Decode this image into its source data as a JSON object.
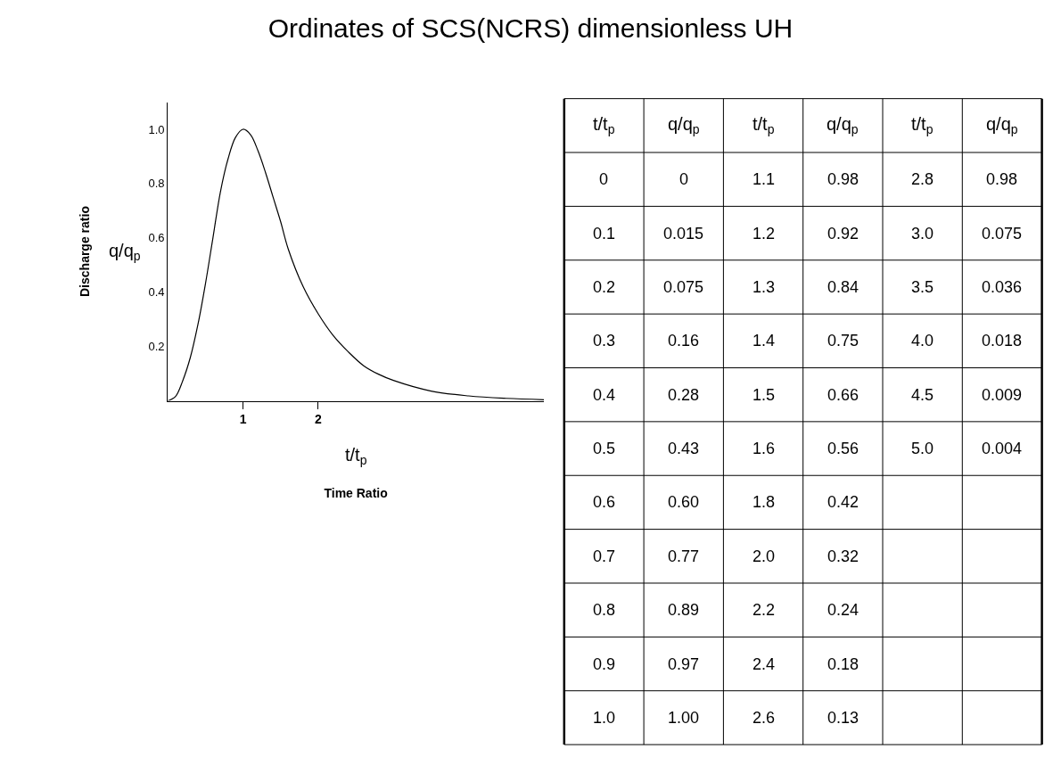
{
  "chart_data": {
    "type": "line",
    "title": "Ordinates of SCS(NCRS) dimensionless UH",
    "xlabel": "Time Ratio",
    "ylabel": "Discharge ratio",
    "x": [
      0,
      0.1,
      0.2,
      0.3,
      0.4,
      0.5,
      0.6,
      0.7,
      0.8,
      0.9,
      1.0,
      1.1,
      1.2,
      1.3,
      1.4,
      1.5,
      1.6,
      1.8,
      2.0,
      2.2,
      2.4,
      2.6,
      2.8,
      3.0,
      3.5,
      4.0,
      4.5,
      5.0
    ],
    "series": [
      {
        "color": "#000000",
        "values": [
          0,
          0.015,
          0.075,
          0.16,
          0.28,
          0.43,
          0.6,
          0.77,
          0.89,
          0.97,
          1.0,
          0.98,
          0.92,
          0.84,
          0.75,
          0.66,
          0.56,
          0.42,
          0.32,
          0.24,
          0.18,
          0.13,
          0.098,
          0.075,
          0.036,
          0.018,
          0.009,
          0.004
        ]
      }
    ],
    "xlim": [
      0,
      5
    ],
    "xticks": [
      1,
      2
    ],
    "ylim": [
      0,
      1.1
    ],
    "yticks": [
      0.2,
      0.4,
      0.6,
      0.8,
      {
        "value": 1,
        "label": "1.0"
      }
    ],
    "marker": "none",
    "line_style": "solid",
    "annotations": [
      "t/t$_{p}$",
      "q/q$_{p}$",
      "t/t$_{p}$",
      "q/q$_{p}$",
      "t/t$_{p}$",
      "q/q$_{p}$",
      "t/t$_{p}$",
      "q/q$_{p}$",
      "0",
      "0",
      "1.1",
      "0.98",
      "2.8",
      "0.98",
      "0.1",
      "0.015",
      "1.2",
      "0.92",
      "3.0",
      "0.075",
      "0.2",
      "0.075",
      "1.3",
      "0.84",
      "3.5",
      "0.036",
      "0.3",
      "0.16",
      "1.4",
      "0.75",
      "4.0",
      "0.018",
      "0.4",
      "0.28",
      "1.5",
      "0.66",
      "4.5",
      "0.009",
      "0.5",
      "0.43",
      "1.6",
      "0.56",
      "5.0",
      "0.004",
      "0.6",
      "0.60",
      "1.8",
      "0.42",
      null,
      null,
      "0.7",
      "0.77",
      "2.0",
      "0.32",
      null,
      null,
      "0.8",
      "0.89",
      "2.2",
      "0.24",
      null,
      null,
      "0.9",
      "0.97",
      "2.4",
      "0.18",
      null,
      null,
      "1.0",
      "1.00",
      "2.6",
      "0.13",
      null,
      null
    ]
  }
}
